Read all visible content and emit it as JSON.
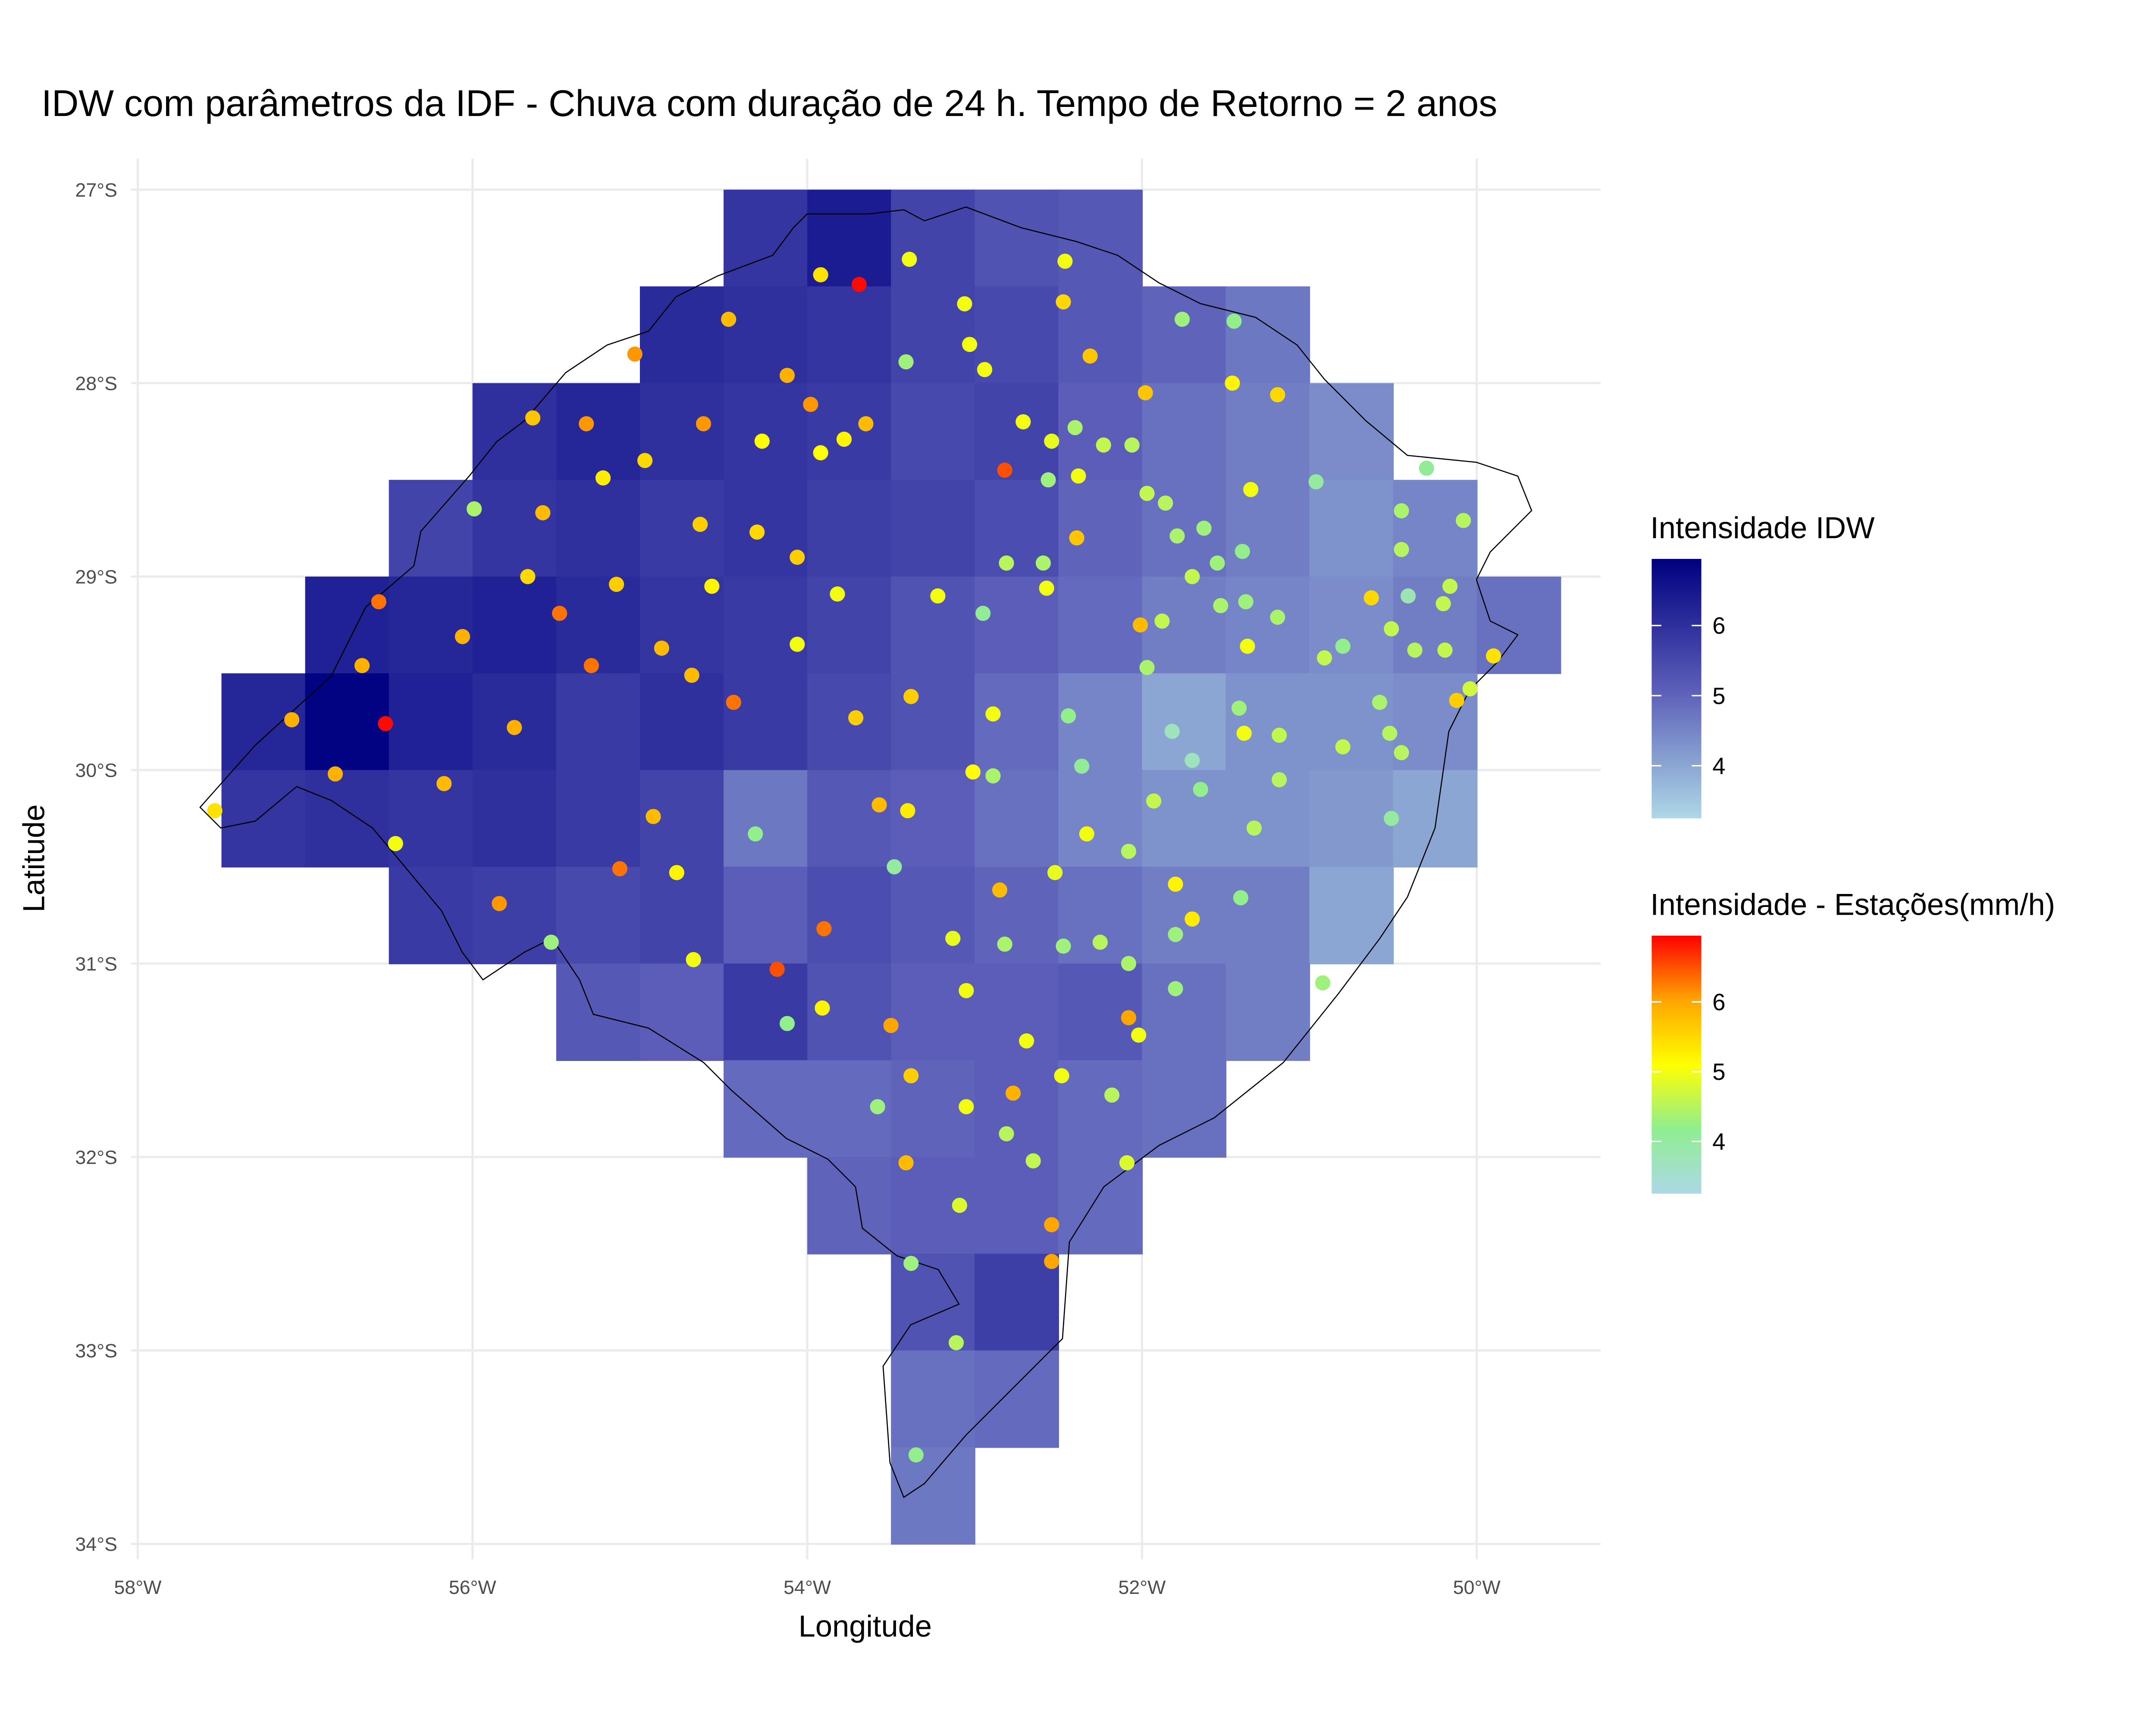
{
  "chart_data": {
    "type": "raster_map",
    "title": "IDW com parâmetros da IDF - Chuva com duração de 24 h. Tempo de Retorno = 2 anos",
    "x_label": "Longitude",
    "y_label": "Latitude",
    "xlim": [
      -58.04,
      -49.26
    ],
    "ylim": [
      -34.08,
      -26.84
    ],
    "xticks": [
      {
        "value": -58,
        "label": "58°W"
      },
      {
        "value": -56,
        "label": "56°W"
      },
      {
        "value": -54,
        "label": "54°W"
      },
      {
        "value": -52,
        "label": "52°W"
      },
      {
        "value": -50,
        "label": "50°W"
      }
    ],
    "yticks": [
      {
        "value": -34,
        "label": "34°S"
      },
      {
        "value": -33,
        "label": "33°S"
      },
      {
        "value": -32,
        "label": "32°S"
      },
      {
        "value": -31,
        "label": "31°S"
      },
      {
        "value": -30,
        "label": "30°S"
      },
      {
        "value": -29,
        "label": "29°S"
      },
      {
        "value": -28,
        "label": "28°S"
      },
      {
        "value": -27,
        "label": "27°S"
      }
    ],
    "grid": true,
    "raster": {
      "cell_size": 0.5,
      "lon": [
        -57.25,
        -56.75,
        -56.25,
        -55.75,
        -55.25,
        -54.75,
        -54.25,
        -53.75,
        -53.25,
        -52.75,
        -52.25,
        -51.75,
        -51.25,
        -50.75,
        -50.25,
        -49.75
      ],
      "lat": [
        -27.25,
        -27.75,
        -28.25,
        -28.75,
        -29.25,
        -29.75,
        -30.25,
        -30.75,
        -31.25,
        -31.75,
        -32.25,
        -32.75,
        -33.25,
        -33.75
      ],
      "z": [
        [
          null,
          null,
          null,
          null,
          null,
          null,
          5.9,
          6.4,
          5.6,
          5.3,
          5.2,
          null,
          null,
          null,
          null,
          null
        ],
        [
          null,
          null,
          null,
          null,
          null,
          6.1,
          6.0,
          5.9,
          5.6,
          5.5,
          5.2,
          5.0,
          4.7,
          null,
          null,
          null
        ],
        [
          null,
          null,
          null,
          6.0,
          6.2,
          6.0,
          5.9,
          5.8,
          5.5,
          5.6,
          5.1,
          4.8,
          4.6,
          4.4,
          null,
          null
        ],
        [
          null,
          null,
          5.6,
          5.9,
          6.0,
          5.8,
          5.9,
          5.7,
          5.6,
          5.4,
          5.0,
          4.8,
          4.6,
          4.3,
          4.5,
          null
        ],
        [
          null,
          6.3,
          6.2,
          6.3,
          6.1,
          5.9,
          5.8,
          5.6,
          5.3,
          5.1,
          4.9,
          4.6,
          4.5,
          4.4,
          4.6,
          4.8
        ],
        [
          6.2,
          6.9,
          6.3,
          6.1,
          5.8,
          6.0,
          5.8,
          5.5,
          5.3,
          4.9,
          4.5,
          4.0,
          4.3,
          4.3,
          4.4,
          null
        ],
        [
          5.9,
          6.0,
          5.9,
          6.0,
          5.8,
          5.6,
          4.7,
          5.2,
          5.1,
          4.8,
          4.5,
          4.3,
          4.3,
          4.2,
          4.0,
          null
        ],
        [
          null,
          null,
          5.8,
          5.7,
          5.5,
          5.6,
          5.1,
          5.4,
          5.2,
          5.0,
          4.8,
          4.6,
          4.6,
          4.0,
          null,
          null
        ],
        [
          null,
          null,
          null,
          null,
          5.2,
          5.1,
          5.8,
          5.3,
          5.1,
          5.1,
          5.2,
          4.8,
          4.6,
          null,
          null,
          null
        ],
        [
          null,
          null,
          null,
          null,
          null,
          null,
          4.9,
          4.9,
          5.0,
          5.1,
          4.9,
          4.8,
          null,
          null,
          null,
          null
        ],
        [
          null,
          null,
          null,
          null,
          null,
          null,
          null,
          5.0,
          5.1,
          5.1,
          4.9,
          null,
          null,
          null,
          null,
          null
        ],
        [
          null,
          null,
          null,
          null,
          null,
          null,
          null,
          null,
          5.3,
          5.7,
          null,
          null,
          null,
          null,
          null,
          null
        ],
        [
          null,
          null,
          null,
          null,
          null,
          null,
          null,
          null,
          4.8,
          4.9,
          null,
          null,
          null,
          null,
          null,
          null
        ],
        [
          null,
          null,
          null,
          null,
          null,
          null,
          null,
          null,
          4.7,
          null,
          null,
          null,
          null,
          null,
          null,
          null
        ]
      ]
    },
    "fill_limits": [
      3.25,
      6.95
    ],
    "fill_colors": [
      "#add8e6",
      "#5b5db8",
      "#000080"
    ],
    "fill_legend": {
      "title": "Intensidade IDW",
      "ticks": [
        4,
        5,
        6
      ]
    },
    "stations": {
      "lon": [
        -53.69,
        -56.52,
        -54.18,
        -52.82,
        -56.56,
        -55.48,
        -55.29,
        -55.12,
        -53.9,
        -54.44,
        -55.84,
        -55.03,
        -54.62,
        -55.32,
        -53.98,
        -54.12,
        -56.06,
        -55.75,
        -56.82,
        -57.08,
        -56.66,
        -56.17,
        -54.87,
        -54.69,
        -55.58,
        -55.64,
        -54.47,
        -53.65,
        -53.5,
        -52.54,
        -52.54,
        -52.08,
        -52.77,
        -52.85,
        -53.57,
        -54.92,
        -53.41,
        -53.38,
        -53.38,
        -53.71,
        -51.98,
        -52.31,
        -52.39,
        -52.01,
        -50.12,
        -49.9,
        -50.63,
        -51.19,
        -51.46,
        -53.92,
        -53.39,
        -53.06,
        -52.46,
        -52.47,
        -53.03,
        -52.94,
        -53.78,
        -53.92,
        -54.27,
        -55.22,
        -54.97,
        -54.3,
        -54.06,
        -54.64,
        -54.57,
        -55.14,
        -55.67,
        -54.06,
        -53.82,
        -53.22,
        -52.71,
        -52.54,
        -52.38,
        -51.35,
        -52.57,
        -52.89,
        -53.01,
        -53.4,
        -52.33,
        -52.52,
        -54.78,
        -54.68,
        -53.91,
        -53.13,
        -53.05,
        -52.69,
        -52.48,
        -53.05,
        -52.02,
        -51.8,
        -51.7,
        -51.37,
        -51.39,
        -55.99,
        -53.41,
        -51.76,
        -51.45,
        -50.96,
        -50.3,
        -50.45,
        -50.08,
        -50.45,
        -50.16,
        -50.41,
        -50.2,
        -50.51,
        -50.37,
        -50.8,
        -50.91,
        -50.19,
        -50.04,
        -50.58,
        -50.52,
        -50.45,
        -50.8,
        -50.51,
        -50.92,
        -51.41,
        -51.33,
        -51.18,
        -51.18,
        -51.82,
        -51.7,
        -51.93,
        -51.65,
        -52.08,
        -51.8,
        -51.8,
        -52.08,
        -52.25,
        -52.47,
        -52.82,
        -52.36,
        -52.44,
        -52.89,
        -52.95,
        -52.81,
        -52.59,
        -52.56,
        -52.4,
        -52.23,
        -52.06,
        -51.97,
        -51.86,
        -51.79,
        -51.63,
        -51.7,
        -51.55,
        -51.4,
        -51.53,
        -51.38,
        -51.19,
        -51.42,
        -51.88,
        -51.97,
        -54.31,
        -53.48,
        -54.12,
        -53.58,
        -53.11,
        -53.35,
        -53.38,
        -52.81,
        -52.65,
        -52.09,
        -52.18,
        -53.09,
        -55.53,
        -56.46,
        -57.54
      ],
      "lat": [
        -27.49,
        -29.76,
        -31.03,
        -28.45,
        -29.13,
        -29.19,
        -29.46,
        -30.51,
        -30.82,
        -29.65,
        -30.69,
        -27.85,
        -28.21,
        -28.21,
        -28.11,
        -27.96,
        -29.31,
        -29.78,
        -30.02,
        -29.74,
        -29.46,
        -30.07,
        -29.37,
        -29.51,
        -28.67,
        -28.18,
        -27.67,
        -28.21,
        -31.32,
        -32.35,
        -32.54,
        -31.28,
        -31.67,
        -30.62,
        -30.18,
        -30.24,
        -32.03,
        -31.58,
        -29.62,
        -29.73,
        -28.05,
        -27.86,
        -28.8,
        -29.25,
        -29.64,
        -29.41,
        -29.11,
        -28.06,
        -28.0,
        -27.44,
        -27.36,
        -27.59,
        -27.37,
        -27.58,
        -27.8,
        -27.93,
        -28.29,
        -28.36,
        -28.3,
        -28.49,
        -28.4,
        -28.77,
        -28.9,
        -28.73,
        -29.05,
        -29.04,
        -29.0,
        -29.35,
        -29.09,
        -29.1,
        -28.2,
        -28.3,
        -28.48,
        -28.55,
        -29.06,
        -29.71,
        -30.01,
        -30.21,
        -30.33,
        -30.53,
        -30.53,
        -30.98,
        -31.23,
        -30.87,
        -31.14,
        -31.4,
        -31.58,
        -31.74,
        -31.37,
        -30.59,
        -30.77,
        -29.36,
        -29.81,
        -28.65,
        -27.89,
        -27.67,
        -27.68,
        -28.51,
        -28.44,
        -28.66,
        -28.71,
        -28.86,
        -29.05,
        -29.1,
        -29.14,
        -29.27,
        -29.38,
        -29.36,
        -29.42,
        -29.38,
        -29.58,
        -29.65,
        -29.81,
        -29.91,
        -29.88,
        -30.25,
        -31.1,
        -30.66,
        -30.3,
        -29.82,
        -30.05,
        -29.8,
        -29.95,
        -30.16,
        -30.1,
        -30.42,
        -30.85,
        -31.13,
        -31.0,
        -30.89,
        -30.91,
        -30.9,
        -29.98,
        -29.72,
        -30.03,
        -29.19,
        -28.93,
        -28.93,
        -28.5,
        -28.23,
        -28.32,
        -28.32,
        -28.57,
        -28.62,
        -28.79,
        -28.75,
        -29.0,
        -28.93,
        -28.87,
        -29.15,
        -29.13,
        -29.21,
        -29.68,
        -29.23,
        -29.47,
        -30.33,
        -30.5,
        -31.31,
        -31.74,
        -32.96,
        -33.54,
        -32.55,
        -31.88,
        -32.02,
        -32.03,
        -31.68,
        -32.25,
        -30.89,
        -30.38,
        -30.21
      ],
      "values": [
        6.9,
        6.9,
        6.5,
        6.5,
        6.3,
        6.3,
        6.3,
        6.3,
        6.3,
        6.3,
        6.1,
        6.1,
        6.1,
        6.1,
        6.1,
        5.9,
        5.9,
        5.9,
        5.9,
        5.9,
        5.9,
        5.8,
        5.8,
        5.8,
        5.8,
        5.7,
        5.8,
        5.8,
        6.0,
        6.0,
        6.0,
        6.0,
        5.9,
        5.8,
        5.8,
        5.8,
        5.8,
        5.6,
        5.6,
        5.6,
        5.7,
        5.7,
        5.7,
        5.8,
        5.6,
        5.4,
        5.5,
        5.5,
        5.2,
        5.4,
        5.0,
        5.0,
        5.0,
        5.5,
        5.0,
        5.0,
        5.2,
        5.1,
        5.1,
        5.3,
        5.5,
        5.5,
        5.6,
        5.6,
        5.2,
        5.6,
        5.5,
        5.0,
        5.0,
        5.0,
        5.0,
        4.9,
        5.0,
        5.0,
        5.0,
        5.0,
        5.1,
        5.3,
        5.0,
        4.9,
        5.2,
        5.0,
        5.2,
        4.9,
        5.0,
        5.0,
        5.0,
        5.0,
        5.0,
        5.2,
        5.3,
        5.0,
        5.0,
        4.4,
        4.3,
        4.3,
        4.2,
        4.0,
        4.1,
        4.4,
        4.5,
        4.5,
        4.6,
        3.8,
        4.6,
        4.6,
        4.5,
        4.2,
        4.6,
        4.6,
        4.7,
        4.4,
        4.5,
        4.5,
        4.6,
        4.0,
        4.3,
        4.2,
        4.5,
        4.6,
        4.5,
        3.7,
        3.7,
        4.6,
        4.2,
        4.5,
        4.3,
        4.3,
        4.4,
        4.5,
        4.3,
        4.4,
        4.1,
        4.2,
        4.4,
        4.1,
        4.5,
        4.4,
        4.3,
        4.4,
        4.6,
        4.5,
        4.6,
        4.5,
        4.4,
        4.3,
        4.6,
        4.3,
        4.2,
        4.4,
        4.3,
        4.4,
        4.3,
        4.6,
        4.4,
        4.2,
        4.0,
        4.2,
        4.3,
        4.5,
        4.2,
        4.3,
        4.5,
        4.6,
        4.8,
        4.5,
        4.8,
        4.3,
        5.0,
        5.4
      ]
    },
    "color_limits": [
      3.25,
      6.95
    ],
    "point_colors": [
      "#add8e6",
      "#90ee90",
      "#ffff00",
      "#ffa500",
      "#ff0000"
    ],
    "color_legend": {
      "title": "Intensidade - Estações(mm/h)",
      "ticks": [
        4,
        5,
        6
      ]
    }
  }
}
